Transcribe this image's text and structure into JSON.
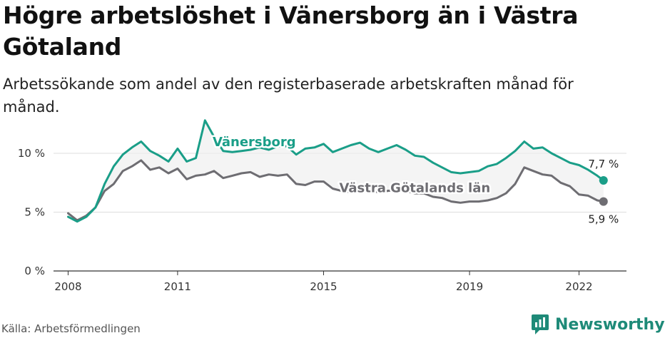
{
  "title": "Högre arbetslöshet i Vänersborg än i Västra Götaland",
  "subtitle": "Arbetssökande som andel av den registerbaserade arbetskraften månad för månad.",
  "source": "Källa: Arbetsförmedlingen",
  "brand": {
    "name": "Newsworthy",
    "icon": "newsworthy-logo-icon",
    "color": "#1e8a78"
  },
  "chart_data": {
    "type": "line",
    "title": "Högre arbetslöshet i Vänersborg än i Västra Götaland",
    "xlabel": "",
    "ylabel": "",
    "xlim": [
      2007.6,
      2023.3
    ],
    "ylim": [
      0,
      10
    ],
    "x_ticks": [
      2008,
      2011,
      2015,
      2019,
      2022
    ],
    "y_ticks": [
      0,
      5,
      10
    ],
    "y_tick_labels": [
      "0 %",
      "5 %",
      "10 %"
    ],
    "grid": "horizontal",
    "series": [
      {
        "name": "Vänersborg",
        "color": "#1a9e88",
        "end_label": "7,7 %",
        "x": [
          2008.0,
          2008.25,
          2008.5,
          2008.75,
          2009.0,
          2009.25,
          2009.5,
          2009.75,
          2010.0,
          2010.25,
          2010.5,
          2010.75,
          2011.0,
          2011.25,
          2011.5,
          2011.75,
          2012.0,
          2012.25,
          2012.5,
          2012.75,
          2013.0,
          2013.25,
          2013.5,
          2013.75,
          2014.0,
          2014.25,
          2014.5,
          2014.75,
          2015.0,
          2015.25,
          2015.5,
          2015.75,
          2016.0,
          2016.25,
          2016.5,
          2016.75,
          2017.0,
          2017.25,
          2017.5,
          2017.75,
          2018.0,
          2018.25,
          2018.5,
          2018.75,
          2019.0,
          2019.25,
          2019.5,
          2019.75,
          2020.0,
          2020.25,
          2020.5,
          2020.75,
          2021.0,
          2021.25,
          2021.5,
          2021.75,
          2022.0,
          2022.25,
          2022.5,
          2022.67
        ],
        "values": [
          4.6,
          4.2,
          4.6,
          5.4,
          7.4,
          8.9,
          9.9,
          10.5,
          11.0,
          10.2,
          9.8,
          9.3,
          10.4,
          9.3,
          9.6,
          12.8,
          11.4,
          10.2,
          10.1,
          10.2,
          10.3,
          10.5,
          10.3,
          10.6,
          10.6,
          9.9,
          10.4,
          10.5,
          10.8,
          10.1,
          10.4,
          10.7,
          10.9,
          10.4,
          10.1,
          10.4,
          10.7,
          10.3,
          9.8,
          9.7,
          9.2,
          8.8,
          8.4,
          8.3,
          8.4,
          8.5,
          8.9,
          9.1,
          9.6,
          10.2,
          11.0,
          10.4,
          10.5,
          10.0,
          9.6,
          9.2,
          9.0,
          8.6,
          8.1,
          7.7
        ]
      },
      {
        "name": "Västra Götalands län",
        "color": "#6e6d72",
        "end_label": "5,9 %",
        "x": [
          2008.0,
          2008.25,
          2008.5,
          2008.75,
          2009.0,
          2009.25,
          2009.5,
          2009.75,
          2010.0,
          2010.25,
          2010.5,
          2010.75,
          2011.0,
          2011.25,
          2011.5,
          2011.75,
          2012.0,
          2012.25,
          2012.5,
          2012.75,
          2013.0,
          2013.25,
          2013.5,
          2013.75,
          2014.0,
          2014.25,
          2014.5,
          2014.75,
          2015.0,
          2015.25,
          2015.5,
          2015.75,
          2016.0,
          2016.25,
          2016.5,
          2016.75,
          2017.0,
          2017.25,
          2017.5,
          2017.75,
          2018.0,
          2018.25,
          2018.5,
          2018.75,
          2019.0,
          2019.25,
          2019.5,
          2019.75,
          2020.0,
          2020.25,
          2020.5,
          2020.75,
          2021.0,
          2021.25,
          2021.5,
          2021.75,
          2022.0,
          2022.25,
          2022.5,
          2022.67
        ],
        "values": [
          4.9,
          4.3,
          4.7,
          5.4,
          6.8,
          7.4,
          8.5,
          8.9,
          9.4,
          8.6,
          8.8,
          8.3,
          8.7,
          7.8,
          8.1,
          8.2,
          8.5,
          7.9,
          8.1,
          8.3,
          8.4,
          8.0,
          8.2,
          8.1,
          8.2,
          7.4,
          7.3,
          7.6,
          7.6,
          7.0,
          6.8,
          6.7,
          6.9,
          6.8,
          6.7,
          6.8,
          6.9,
          6.8,
          6.6,
          6.6,
          6.3,
          6.2,
          5.9,
          5.8,
          5.9,
          5.9,
          6.0,
          6.2,
          6.6,
          7.4,
          8.8,
          8.5,
          8.2,
          8.1,
          7.5,
          7.2,
          6.5,
          6.4,
          6.0,
          5.9
        ]
      }
    ]
  }
}
